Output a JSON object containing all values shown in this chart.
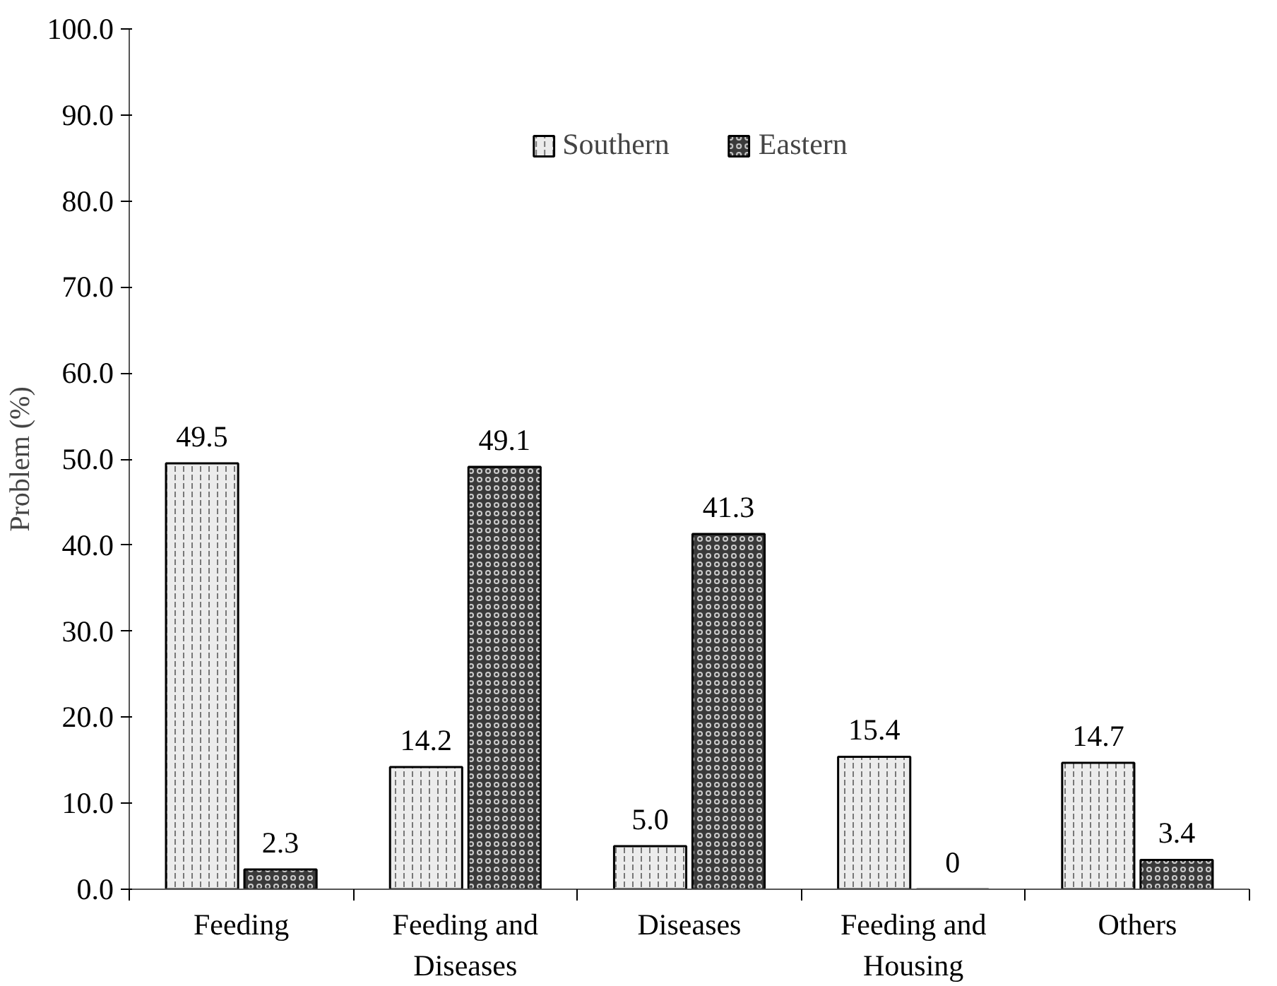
{
  "chart_data": {
    "type": "bar",
    "ylabel": "Problem (%)",
    "categories": [
      "Feeding",
      "Feeding and Diseases",
      "Diseases",
      "Feeding and Housing",
      "Others"
    ],
    "series": [
      {
        "name": "Southern",
        "color": "#ececec",
        "values": [
          49.5,
          14.2,
          5.0,
          15.4,
          14.7
        ],
        "value_labels": [
          "49.5",
          "14.2",
          "5.0",
          "15.4",
          "14.7"
        ]
      },
      {
        "name": "Eastern",
        "color": "#3a3a3a",
        "values": [
          2.3,
          49.1,
          41.3,
          0,
          3.4
        ],
        "value_labels": [
          "2.3",
          "49.1",
          "41.3",
          "0",
          "3.4"
        ]
      }
    ],
    "ylim": [
      0,
      100
    ],
    "yticks": [
      {
        "value": 0,
        "label": "0.0"
      },
      {
        "value": 10,
        "label": "10.0"
      },
      {
        "value": 20,
        "label": "20.0"
      },
      {
        "value": 30,
        "label": "30.0"
      },
      {
        "value": 40,
        "label": "40.0"
      },
      {
        "value": 50,
        "label": "50.0"
      },
      {
        "value": 60,
        "label": "60.0"
      },
      {
        "value": 70,
        "label": "70.0"
      },
      {
        "value": 80,
        "label": "80.0"
      },
      {
        "value": 90,
        "label": "90.0"
      },
      {
        "value": 100,
        "label": "100.0"
      }
    ],
    "grid": false,
    "legend": "top"
  }
}
